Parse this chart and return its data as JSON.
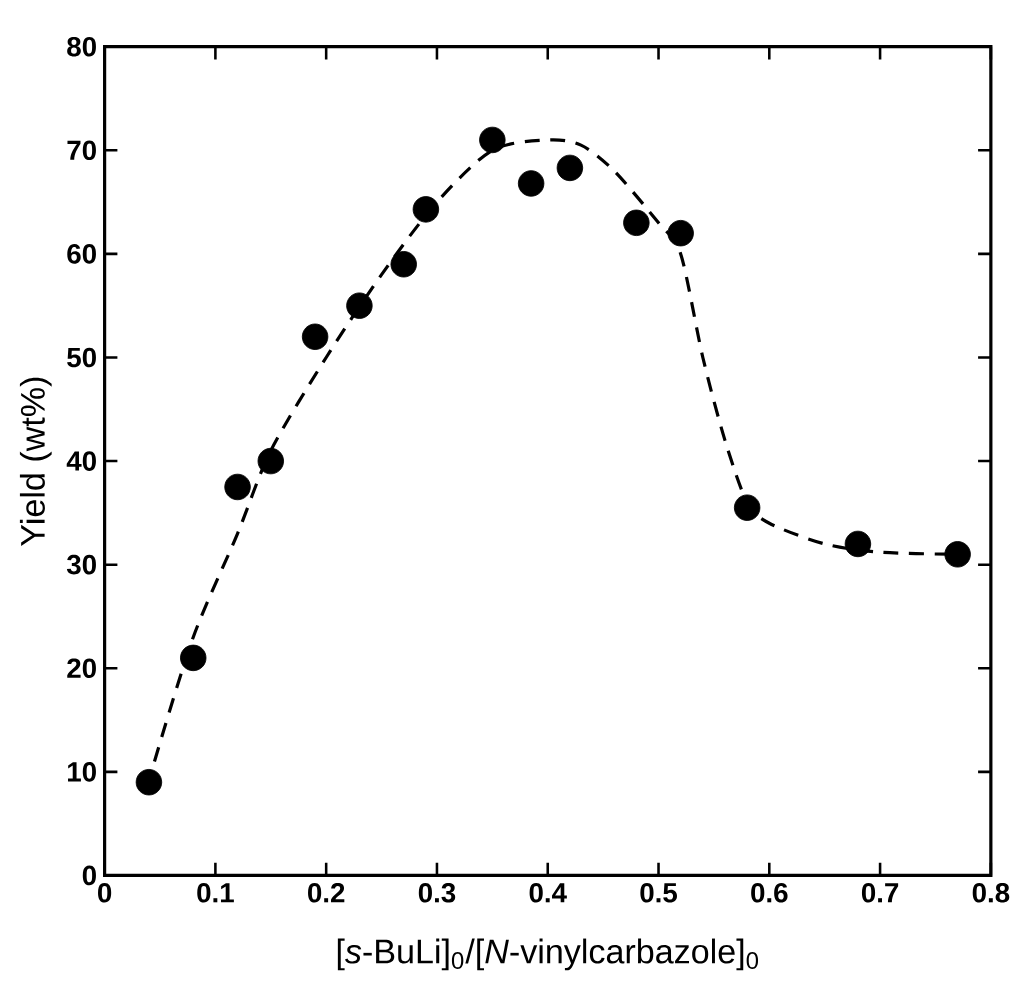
{
  "chart_data": {
    "type": "scatter",
    "xlabel": "[*s*-BuLi]$_{0}$/[*N*-vinylcarbazole]$_{0}$",
    "ylabel": "Yield (wt%)",
    "xlim": [
      0,
      0.8
    ],
    "ylim": [
      0,
      80
    ],
    "xticks": [
      0,
      0.1,
      0.2,
      0.3,
      0.4,
      0.5,
      0.6,
      0.7,
      0.8
    ],
    "yticks": [
      0,
      10,
      20,
      30,
      40,
      50,
      60,
      70,
      80
    ],
    "grid": false,
    "series": [
      {
        "color": "#000000",
        "marker": "circle",
        "x": [
          0.04,
          0.08,
          0.12,
          0.15,
          0.19,
          0.23,
          0.27,
          0.29,
          0.35,
          0.385,
          0.42,
          0.48,
          0.52,
          0.58,
          0.68,
          0.77
        ],
        "values": [
          9,
          21,
          37.5,
          40,
          52,
          55,
          59,
          64.3,
          71,
          66.8,
          68.3,
          63,
          62,
          35.5,
          32,
          31
        ]
      },
      {
        "type": "line",
        "color": "#000000",
        "marker": "none",
        "line_style": "dashed",
        "x": [
          0.045,
          0.08,
          0.12,
          0.15,
          0.2,
          0.25,
          0.3,
          0.35,
          0.4,
          0.43,
          0.46,
          0.5,
          0.52,
          0.54,
          0.56,
          0.58,
          0.6,
          0.65,
          0.7,
          0.77
        ],
        "values": [
          11,
          23,
          33,
          41,
          50,
          58,
          65,
          70,
          71,
          70.5,
          68,
          63,
          60,
          50,
          42,
          36,
          34,
          32,
          31.2,
          31
        ]
      }
    ]
  }
}
